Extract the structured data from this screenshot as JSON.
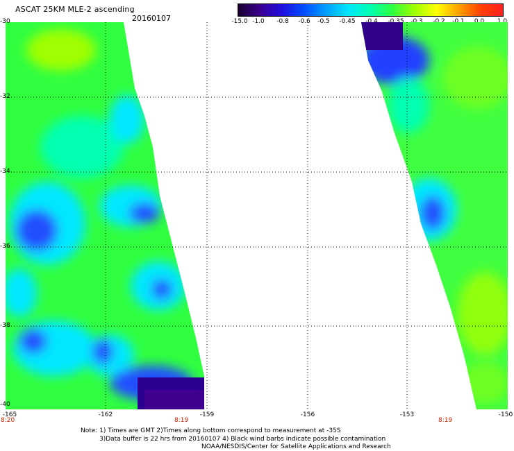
{
  "header": {
    "title": "ASCAT 25KM MLE-2 ascending",
    "date": "20160107"
  },
  "colorbar": {
    "labels": [
      "-15.0",
      "-1.0",
      "-0.8",
      "-0.6",
      "-0.5",
      "-0.45",
      "-0.4",
      "-0.35",
      "-0.3",
      "-0.2",
      "-0.1",
      "0.0",
      "1.0"
    ],
    "colors": [
      "#1a0030",
      "#3a0090",
      "#2010e0",
      "#0050ff",
      "#00a0ff",
      "#00e8ff",
      "#00ffb0",
      "#30ff40",
      "#a0ff00",
      "#ffff00",
      "#ffa000",
      "#ff4000",
      "#ff2020"
    ]
  },
  "map": {
    "lat_labels": [
      "-30",
      "-32",
      "-34",
      "-36",
      "-38",
      "-40"
    ],
    "lon_labels": [
      "-165",
      "-162",
      "-159",
      "-156",
      "-153",
      "-150"
    ],
    "time_labels": [
      "8:20",
      "8:19",
      "8:19"
    ],
    "gridlines": true
  },
  "notes": {
    "line1": "Note: 1) Times are GMT 2)Times along bottom correspond to measurement at -35S",
    "line2": "3)Data buffer is 22 hrs from 20160107 4) Black wind barbs indicate possible contamination",
    "line3": "NOAA/NESDIS/Center for Satellite Applications and Research"
  }
}
